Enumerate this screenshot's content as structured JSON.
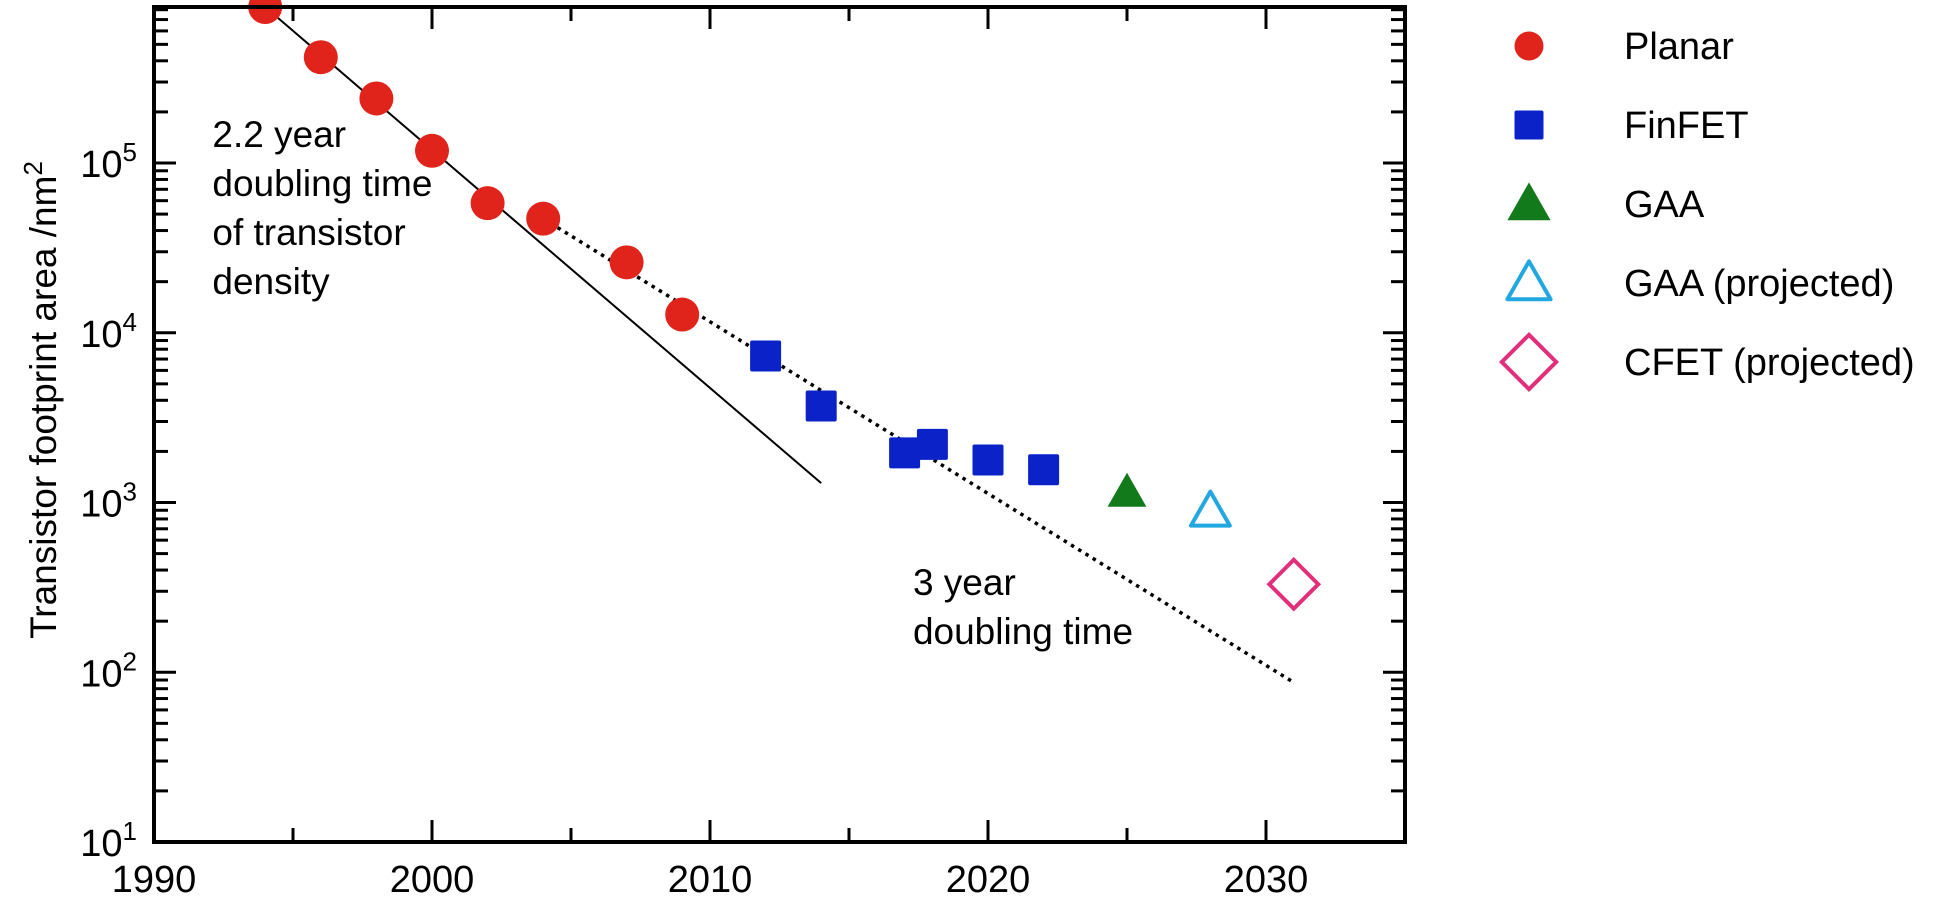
{
  "chart_data": {
    "type": "scatter",
    "title": "",
    "xlabel": "",
    "ylabel": "Transistor footprint area /nm",
    "ylabel_sup": "2",
    "yscale": "log",
    "xlim": [
      1990,
      2035
    ],
    "ylim": [
      10,
      830000
    ],
    "grid": false,
    "legend_position": "right-outside-top",
    "x_ticks": [
      {
        "value": 1990,
        "label": "1990"
      },
      {
        "value": 2000,
        "label": "2000"
      },
      {
        "value": 2010,
        "label": "2010"
      },
      {
        "value": 2020,
        "label": "2020"
      },
      {
        "value": 2030,
        "label": "2030"
      }
    ],
    "x_minor_ticks": [
      1995,
      2005,
      2015,
      2025,
      2035
    ],
    "y_ticks": [
      {
        "value": 10,
        "base": "10",
        "exp": "1"
      },
      {
        "value": 100,
        "base": "10",
        "exp": "2"
      },
      {
        "value": 1000,
        "base": "10",
        "exp": "3"
      },
      {
        "value": 10000,
        "base": "10",
        "exp": "4"
      },
      {
        "value": 100000,
        "base": "10",
        "exp": "5"
      }
    ],
    "series": [
      {
        "name": "Planar",
        "marker": "circle",
        "filled": true,
        "color": "#e0241b",
        "points": [
          {
            "x": 1994,
            "y": 830000
          },
          {
            "x": 1996,
            "y": 420000
          },
          {
            "x": 1998,
            "y": 240000
          },
          {
            "x": 2000,
            "y": 118000
          },
          {
            "x": 2002,
            "y": 58000
          },
          {
            "x": 2004,
            "y": 47000
          },
          {
            "x": 2007,
            "y": 26000
          },
          {
            "x": 2009,
            "y": 12800
          }
        ]
      },
      {
        "name": "FinFET",
        "marker": "square",
        "filled": true,
        "color": "#0a22c8",
        "points": [
          {
            "x": 2012,
            "y": 7300
          },
          {
            "x": 2014,
            "y": 3700
          },
          {
            "x": 2017,
            "y": 1960
          },
          {
            "x": 2018,
            "y": 2200
          },
          {
            "x": 2020,
            "y": 1780
          },
          {
            "x": 2022,
            "y": 1560
          }
        ]
      },
      {
        "name": "GAA",
        "marker": "triangle",
        "filled": true,
        "color": "#137a1c",
        "points": [
          {
            "x": 2025,
            "y": 1150
          }
        ]
      },
      {
        "name": "GAA (projected)",
        "marker": "triangle",
        "filled": false,
        "color": "#23a7e0",
        "points": [
          {
            "x": 2028,
            "y": 890
          }
        ]
      },
      {
        "name": "CFET (projected)",
        "marker": "diamond",
        "filled": false,
        "color": "#e0307c",
        "points": [
          {
            "x": 2031,
            "y": 330
          }
        ]
      }
    ],
    "trend_lines": [
      {
        "name": "2.2 year doubling",
        "style": "solid",
        "color": "#000000",
        "from": {
          "x": 1994,
          "y": 830000
        },
        "to": {
          "x": 2014,
          "y": 1300
        }
      },
      {
        "name": "3 year doubling",
        "style": "dotted",
        "color": "#000000",
        "from": {
          "x": 2004,
          "y": 47000
        },
        "to": {
          "x": 2031,
          "y": 87
        }
      }
    ],
    "annotations": [
      {
        "lines": [
          "2.2 year",
          "doubling time",
          "of transistor",
          "density"
        ],
        "anchor": {
          "x": 1992.1,
          "y": 70000
        }
      },
      {
        "lines": [
          "3 year",
          "doubling time"
        ],
        "anchor": {
          "x": 2017.3,
          "y": 300
        }
      }
    ]
  }
}
